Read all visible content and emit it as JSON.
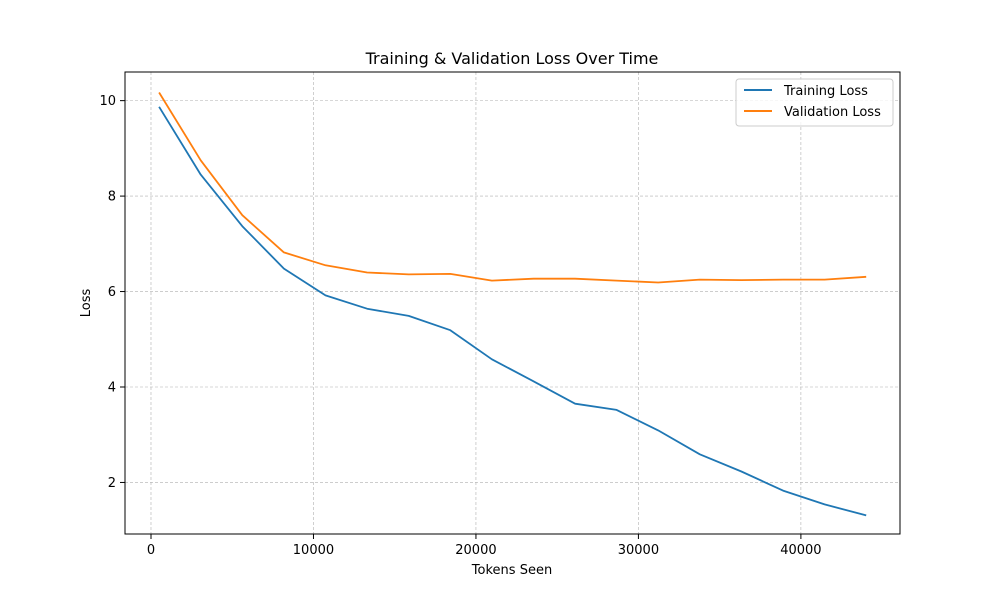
{
  "chart_data": {
    "type": "line",
    "title": "Training & Validation Loss Over Time",
    "xlabel": "Tokens Seen",
    "ylabel": "Loss",
    "xlim": [
      -1600,
      46100
    ],
    "ylim": [
      0.92,
      10.6
    ],
    "x_ticks": [
      0,
      10000,
      20000,
      30000,
      40000
    ],
    "y_ticks": [
      2,
      4,
      6,
      8,
      10
    ],
    "grid": true,
    "legend_position": "top-right",
    "x": [
      500,
      3060,
      5620,
      8180,
      10740,
      13300,
      15860,
      18420,
      20980,
      23540,
      26100,
      28660,
      31220,
      33780,
      36340,
      38900,
      41460,
      44020
    ],
    "series": [
      {
        "name": "Training Loss",
        "color": "#1f77b4",
        "values": [
          9.87,
          8.45,
          7.37,
          6.48,
          5.92,
          5.64,
          5.49,
          5.19,
          4.58,
          4.12,
          3.65,
          3.52,
          3.09,
          2.59,
          2.23,
          1.83,
          1.54,
          1.31
        ]
      },
      {
        "name": "Validation Loss",
        "color": "#ff7f0e",
        "values": [
          10.17,
          8.75,
          7.6,
          6.82,
          6.55,
          6.4,
          6.36,
          6.37,
          6.23,
          6.27,
          6.27,
          6.23,
          6.19,
          6.25,
          6.24,
          6.25,
          6.25,
          6.31
        ]
      }
    ]
  }
}
